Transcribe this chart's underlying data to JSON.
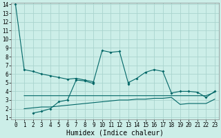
{
  "title": "",
  "xlabel": "Humidex (Indice chaleur)",
  "bg_color": "#cceee8",
  "grid_color": "#aad4ce",
  "line_color": "#006666",
  "x_values": [
    0,
    1,
    2,
    3,
    4,
    5,
    6,
    7,
    8,
    9,
    10,
    11,
    12,
    13,
    14,
    15,
    16,
    17,
    18,
    19,
    20,
    21,
    22,
    23
  ],
  "line1_y": [
    14.0,
    6.5,
    6.3,
    6.0,
    5.8,
    5.6,
    5.4,
    5.5,
    5.3,
    5.1,
    8.7,
    8.5,
    8.6,
    5.0,
    5.5,
    6.2,
    6.5,
    6.3,
    3.8,
    4.0,
    4.0,
    3.9,
    3.3,
    4.0
  ],
  "line2_y": [
    null,
    null,
    1.5,
    1.7,
    2.0,
    2.8,
    3.0,
    5.3,
    5.2,
    4.9,
    null,
    null,
    null,
    4.8,
    null,
    null,
    null,
    null,
    null,
    null,
    null,
    null,
    null,
    null
  ],
  "line3_y": [
    null,
    3.5,
    3.5,
    3.5,
    3.5,
    3.5,
    3.5,
    3.5,
    3.5,
    3.5,
    3.5,
    3.5,
    3.5,
    3.5,
    3.5,
    3.5,
    3.5,
    3.5,
    3.5,
    3.5,
    3.5,
    3.5,
    3.5,
    3.9
  ],
  "line4_y": [
    null,
    2.0,
    2.1,
    2.2,
    2.2,
    2.3,
    2.4,
    2.5,
    2.6,
    2.7,
    2.8,
    2.9,
    3.0,
    3.0,
    3.1,
    3.1,
    3.2,
    3.2,
    3.3,
    2.5,
    2.6,
    2.6,
    2.6,
    3.1
  ],
  "ylim": [
    1,
    14
  ],
  "xlim": [
    -0.5,
    23.5
  ],
  "yticks": [
    1,
    2,
    3,
    4,
    5,
    6,
    7,
    8,
    9,
    10,
    11,
    12,
    13,
    14
  ],
  "xticks": [
    0,
    1,
    2,
    3,
    4,
    5,
    6,
    7,
    8,
    9,
    10,
    11,
    12,
    13,
    14,
    15,
    16,
    17,
    18,
    19,
    20,
    21,
    22,
    23
  ],
  "tick_fontsize": 5.5,
  "xlabel_fontsize": 7
}
